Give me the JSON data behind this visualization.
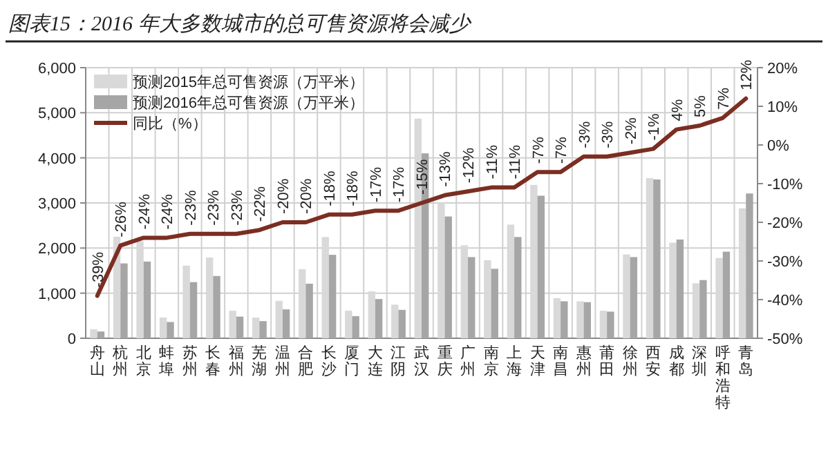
{
  "chart_data": {
    "type": "bar",
    "title": "图表15：2016 年大多数城市的总可售资源将会减少",
    "categories": [
      "舟山",
      "杭州",
      "北京",
      "蚌埠",
      "苏州",
      "长春",
      "福州",
      "芜湖",
      "温州",
      "合肥",
      "长沙",
      "厦门",
      "大连",
      "江阴",
      "武汉",
      "重庆",
      "广州",
      "南京",
      "上海",
      "天津",
      "南昌",
      "惠州",
      "莆田",
      "徐州",
      "西安",
      "成都",
      "深圳",
      "呼和浩特",
      "青岛"
    ],
    "series": [
      {
        "name": "预测2015年总可售资源（万平米）",
        "color": "#d9d9d9",
        "values": [
          200,
          2250,
          2150,
          460,
          1610,
          1790,
          610,
          460,
          830,
          1530,
          2245,
          610,
          1040,
          745,
          4870,
          3000,
          2060,
          1730,
          2520,
          3400,
          890,
          820,
          610,
          1860,
          3550,
          2120,
          1220,
          1780,
          2880
        ]
      },
      {
        "name": "预测2016年总可售资源（万平米）",
        "color": "#a6a6a6",
        "values": [
          150,
          1660,
          1700,
          360,
          1245,
          1380,
          480,
          380,
          640,
          1210,
          1850,
          490,
          870,
          630,
          4100,
          2700,
          1800,
          1540,
          2245,
          3160,
          820,
          800,
          590,
          1800,
          3520,
          2190,
          1290,
          1920,
          3210
        ]
      },
      {
        "name": "同比（%）",
        "type": "line",
        "axis": "y2",
        "color": "#7b2e22",
        "values": [
          -39,
          -26,
          -24,
          -24,
          -23,
          -23,
          -23,
          -22,
          -20,
          -20,
          -18,
          -18,
          -17,
          -17,
          -15,
          -13,
          -12,
          -11,
          -11,
          -7,
          -7,
          -3,
          -3,
          -2,
          -1,
          4,
          5,
          7,
          12
        ],
        "value_labels": [
          "-39%",
          "-26%",
          "-24%",
          "-24%",
          "-23%",
          "-23%",
          "-23%",
          "-22%",
          "-20%",
          "-20%",
          "-18%",
          "-18%",
          "-17%",
          "-17%",
          "-15%",
          "-13%",
          "-12%",
          "-11%",
          "-11%",
          "-7%",
          "-7%",
          "-3%",
          "-3%",
          "-2%",
          "-1%",
          "4%",
          "5%",
          "7%",
          "12%"
        ]
      }
    ],
    "ylim": [
      0,
      6000
    ],
    "yticks": [
      0,
      {
        "value": 1000,
        "label": "1,000"
      },
      {
        "value": 2000,
        "label": "2,000"
      },
      {
        "value": 3000,
        "label": "3,000"
      },
      {
        "value": 4000,
        "label": "4,000"
      },
      {
        "value": 5000,
        "label": "5,000"
      },
      {
        "value": 6000,
        "label": "6,000"
      }
    ],
    "y2lim": [
      -50,
      20
    ],
    "y2ticks": [
      {
        "value": -50,
        "label": "-50%"
      },
      {
        "value": -40,
        "label": "-40%"
      },
      {
        "value": -30,
        "label": "-30%"
      },
      {
        "value": -20,
        "label": "-20%"
      },
      {
        "value": -10,
        "label": "-10%"
      },
      {
        "value": 0,
        "label": "0%"
      },
      {
        "value": 10,
        "label": "10%"
      },
      {
        "value": 20,
        "label": "20%"
      }
    ],
    "grid": true,
    "legend": "top left"
  }
}
